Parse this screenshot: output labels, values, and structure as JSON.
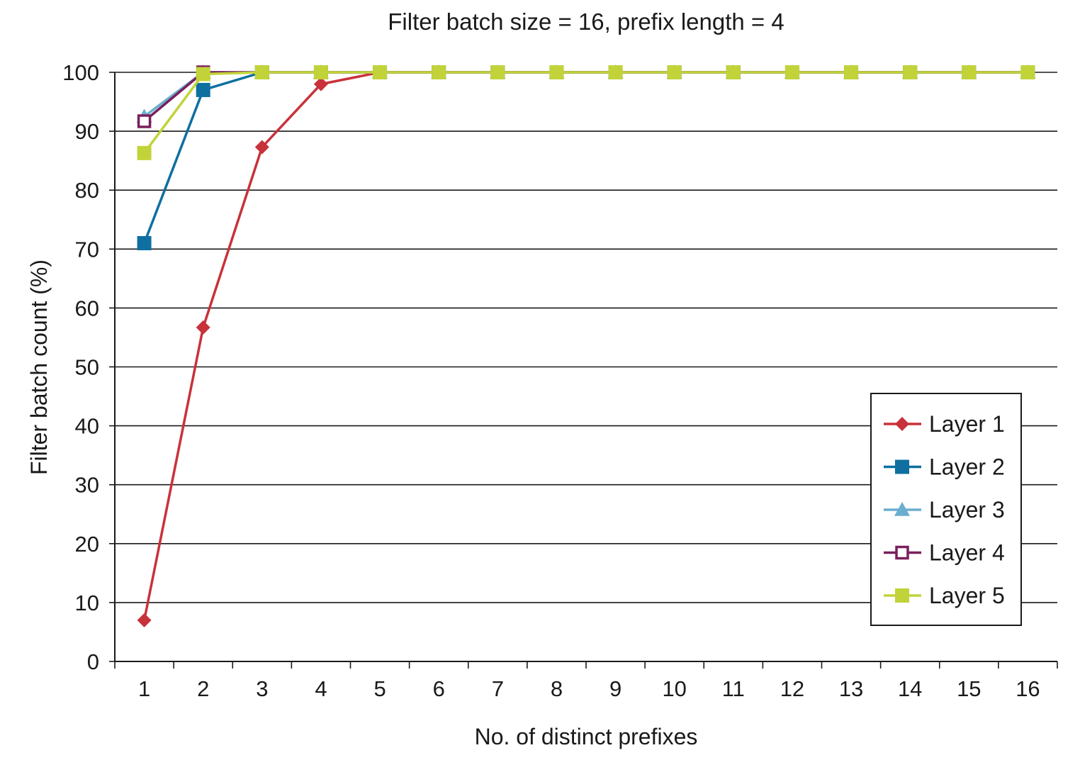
{
  "chart_data": {
    "type": "line",
    "title": "Filter batch size = 16, prefix length = 4",
    "xlabel": "No. of distinct prefixes",
    "ylabel": "Filter batch count (%)",
    "x": [
      1,
      2,
      3,
      4,
      5,
      6,
      7,
      8,
      9,
      10,
      11,
      12,
      13,
      14,
      15,
      16
    ],
    "x_tick_labels": [
      "1",
      "2",
      "3",
      "4",
      "5",
      "6",
      "7",
      "8",
      "9",
      "10",
      "11",
      "12",
      "13",
      "14",
      "15",
      "16"
    ],
    "y_tick_labels": [
      "0",
      "10",
      "20",
      "30",
      "40",
      "50",
      "60",
      "70",
      "80",
      "90",
      "100"
    ],
    "ylim": [
      0,
      100
    ],
    "grid": "horizontal",
    "legend_position": "right",
    "series": [
      {
        "name": "Layer 1",
        "color": "#c8323a",
        "marker": "diamond",
        "values": [
          7,
          56.7,
          87.3,
          98,
          100,
          100,
          100,
          100,
          100,
          100,
          100,
          100,
          100,
          100,
          100,
          100
        ]
      },
      {
        "name": "Layer 2",
        "color": "#0e6fa0",
        "marker": "square",
        "values": [
          71,
          97,
          100,
          100,
          100,
          100,
          100,
          100,
          100,
          100,
          100,
          100,
          100,
          100,
          100,
          100
        ]
      },
      {
        "name": "Layer 3",
        "color": "#6aaed0",
        "marker": "triangle",
        "values": [
          92.5,
          100,
          100,
          100,
          100,
          100,
          100,
          100,
          100,
          100,
          100,
          100,
          100,
          100,
          100,
          100
        ]
      },
      {
        "name": "Layer 4",
        "color": "#7a1f5c",
        "marker": "square-open",
        "values": [
          91.7,
          100,
          100,
          100,
          100,
          100,
          100,
          100,
          100,
          100,
          100,
          100,
          100,
          100,
          100,
          100
        ]
      },
      {
        "name": "Layer 5",
        "color": "#c2d33a",
        "marker": "square",
        "values": [
          86.3,
          99.7,
          100,
          100,
          100,
          100,
          100,
          100,
          100,
          100,
          100,
          100,
          100,
          100,
          100,
          100
        ]
      }
    ]
  }
}
